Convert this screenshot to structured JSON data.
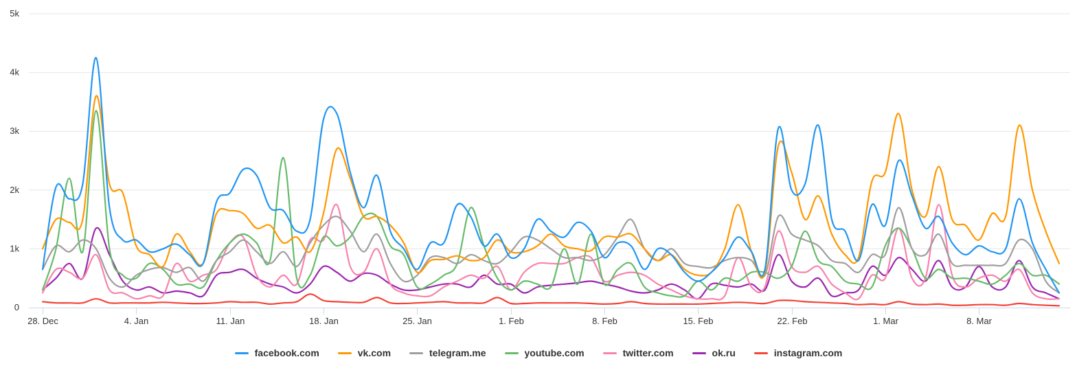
{
  "chart_data": {
    "type": "line",
    "title": "",
    "xlabel": "",
    "ylabel": "",
    "value_unit": "thousands",
    "ylim": [
      0,
      5
    ],
    "y_ticks": [
      {
        "value": 0,
        "label": "0"
      },
      {
        "value": 1,
        "label": "1k"
      },
      {
        "value": 2,
        "label": "2k"
      },
      {
        "value": 3,
        "label": "3k"
      },
      {
        "value": 4,
        "label": "4k"
      },
      {
        "value": 5,
        "label": "5k"
      }
    ],
    "x_days": 77,
    "x_ticks": [
      {
        "day": 0,
        "label": "28. Dec"
      },
      {
        "day": 7,
        "label": "4. Jan"
      },
      {
        "day": 14,
        "label": "11. Jan"
      },
      {
        "day": 21,
        "label": "18. Jan"
      },
      {
        "day": 28,
        "label": "25. Jan"
      },
      {
        "day": 35,
        "label": "1. Feb"
      },
      {
        "day": 42,
        "label": "8. Feb"
      },
      {
        "day": 49,
        "label": "15. Feb"
      },
      {
        "day": 56,
        "label": "22. Feb"
      },
      {
        "day": 63,
        "label": "1. Mar"
      },
      {
        "day": 70,
        "label": "8. Mar"
      }
    ],
    "grid": true,
    "legend_position": "bottom-center",
    "series": [
      {
        "name": "facebook.com",
        "color": "#2196f3",
        "values": [
          0.65,
          2.05,
          1.85,
          2.1,
          4.25,
          1.7,
          1.15,
          1.15,
          0.95,
          1.0,
          1.08,
          0.9,
          0.75,
          1.8,
          1.95,
          2.35,
          2.25,
          1.7,
          1.65,
          1.3,
          1.5,
          3.2,
          3.3,
          2.3,
          1.7,
          2.25,
          1.3,
          1.0,
          0.65,
          1.1,
          1.1,
          1.75,
          1.55,
          1.05,
          1.25,
          0.85,
          1.0,
          1.5,
          1.3,
          1.2,
          1.45,
          1.3,
          0.85,
          1.1,
          1.05,
          0.65,
          1.0,
          0.9,
          0.6,
          0.45,
          0.6,
          0.85,
          1.2,
          0.95,
          0.65,
          3.05,
          2.0,
          2.1,
          3.1,
          1.5,
          1.3,
          0.8,
          1.75,
          1.4,
          2.5,
          1.9,
          1.35,
          1.55,
          1.1,
          0.9,
          1.05,
          0.95,
          1.0,
          1.85,
          1.1,
          0.65,
          0.25
        ]
      },
      {
        "name": "vk.com",
        "color": "#ff9800",
        "values": [
          1.0,
          1.5,
          1.45,
          1.5,
          3.6,
          2.1,
          1.95,
          1.05,
          0.9,
          0.7,
          1.25,
          0.95,
          0.75,
          1.6,
          1.65,
          1.6,
          1.35,
          1.4,
          1.1,
          1.2,
          0.95,
          1.6,
          2.7,
          2.2,
          1.55,
          1.55,
          1.4,
          1.1,
          0.6,
          0.8,
          0.82,
          0.88,
          0.8,
          0.85,
          1.15,
          0.95,
          0.95,
          1.05,
          1.25,
          1.05,
          1.0,
          0.97,
          1.2,
          1.2,
          1.25,
          1.0,
          0.8,
          0.9,
          0.65,
          0.55,
          0.6,
          1.0,
          1.75,
          0.95,
          0.6,
          2.75,
          2.3,
          1.5,
          1.9,
          1.25,
          0.9,
          0.85,
          2.15,
          2.3,
          3.3,
          2.0,
          1.55,
          2.4,
          1.5,
          1.4,
          1.15,
          1.6,
          1.55,
          3.1,
          2.0,
          1.3,
          0.75
        ]
      },
      {
        "name": "telegram.me",
        "color": "#9e9e9e",
        "values": [
          0.65,
          1.05,
          0.95,
          1.15,
          1.0,
          0.5,
          0.35,
          0.55,
          0.65,
          0.68,
          0.6,
          0.68,
          0.45,
          0.8,
          0.95,
          1.15,
          0.95,
          0.75,
          0.95,
          0.7,
          1.1,
          1.4,
          1.55,
          1.3,
          0.95,
          1.25,
          0.75,
          0.45,
          0.55,
          0.85,
          0.85,
          0.75,
          0.9,
          0.8,
          0.75,
          0.95,
          1.2,
          1.15,
          1.0,
          0.85,
          0.85,
          0.8,
          0.9,
          1.2,
          1.5,
          1.0,
          0.8,
          1.0,
          0.75,
          0.7,
          0.68,
          0.8,
          0.85,
          0.8,
          0.55,
          1.55,
          1.25,
          1.15,
          1.05,
          0.8,
          0.75,
          0.6,
          0.9,
          0.9,
          1.7,
          1.0,
          0.9,
          1.25,
          0.75,
          0.72,
          0.72,
          0.72,
          0.75,
          1.15,
          1.0,
          0.45,
          0.25
        ]
      },
      {
        "name": "youtube.com",
        "color": "#66bb6a",
        "values": [
          0.3,
          1.0,
          2.2,
          0.95,
          3.35,
          1.0,
          0.55,
          0.5,
          0.75,
          0.65,
          0.4,
          0.4,
          0.35,
          0.8,
          1.1,
          1.25,
          1.1,
          0.8,
          2.55,
          0.5,
          0.55,
          1.2,
          1.05,
          1.2,
          1.55,
          1.55,
          1.05,
          0.9,
          0.35,
          0.4,
          0.55,
          0.75,
          1.7,
          1.05,
          0.5,
          0.3,
          0.45,
          0.4,
          0.35,
          1.0,
          0.4,
          1.25,
          0.4,
          0.65,
          0.75,
          0.35,
          0.25,
          0.2,
          0.2,
          0.45,
          0.3,
          0.5,
          0.45,
          0.6,
          0.6,
          0.5,
          0.7,
          1.3,
          0.8,
          0.7,
          0.45,
          0.4,
          0.35,
          1.05,
          1.35,
          1.0,
          0.5,
          0.65,
          0.5,
          0.5,
          0.45,
          0.4,
          0.55,
          0.75,
          0.55,
          0.55,
          0.4
        ]
      },
      {
        "name": "twitter.com",
        "color": "#f783ac",
        "values": [
          0.25,
          0.65,
          0.6,
          0.5,
          0.9,
          0.3,
          0.25,
          0.15,
          0.2,
          0.2,
          0.75,
          0.45,
          0.55,
          0.65,
          1.1,
          1.2,
          0.55,
          0.35,
          0.55,
          0.4,
          1.15,
          1.15,
          1.75,
          0.7,
          0.6,
          1.0,
          0.4,
          0.25,
          0.2,
          0.2,
          0.35,
          0.45,
          0.55,
          0.5,
          0.7,
          0.3,
          0.6,
          0.75,
          0.75,
          0.75,
          0.85,
          0.85,
          0.45,
          0.55,
          0.6,
          0.55,
          0.4,
          0.3,
          0.2,
          0.15,
          0.15,
          0.2,
          0.85,
          0.35,
          0.35,
          1.3,
          0.7,
          0.6,
          0.7,
          0.4,
          0.25,
          0.15,
          0.55,
          0.5,
          1.35,
          0.5,
          0.5,
          1.75,
          0.55,
          0.35,
          0.5,
          0.55,
          0.45,
          0.65,
          0.25,
          0.15,
          0.15
        ]
      },
      {
        "name": "ok.ru",
        "color": "#9c27b0",
        "values": [
          0.3,
          0.5,
          0.75,
          0.5,
          1.35,
          0.9,
          0.45,
          0.3,
          0.35,
          0.25,
          0.28,
          0.25,
          0.2,
          0.55,
          0.6,
          0.65,
          0.5,
          0.4,
          0.35,
          0.25,
          0.4,
          0.7,
          0.6,
          0.45,
          0.58,
          0.55,
          0.4,
          0.3,
          0.3,
          0.35,
          0.4,
          0.4,
          0.35,
          0.55,
          0.4,
          0.4,
          0.25,
          0.35,
          0.38,
          0.4,
          0.42,
          0.45,
          0.4,
          0.35,
          0.28,
          0.25,
          0.3,
          0.4,
          0.3,
          0.15,
          0.4,
          0.38,
          0.35,
          0.4,
          0.3,
          0.9,
          0.45,
          0.35,
          0.5,
          0.2,
          0.25,
          0.3,
          0.7,
          0.55,
          0.85,
          0.65,
          0.45,
          0.8,
          0.35,
          0.35,
          0.7,
          0.35,
          0.35,
          0.8,
          0.35,
          0.25,
          0.15
        ]
      },
      {
        "name": "instagram.com",
        "color": "#f44336",
        "values": [
          0.1,
          0.08,
          0.08,
          0.08,
          0.15,
          0.08,
          0.08,
          0.08,
          0.08,
          0.09,
          0.08,
          0.07,
          0.07,
          0.08,
          0.1,
          0.09,
          0.09,
          0.06,
          0.08,
          0.1,
          0.23,
          0.12,
          0.1,
          0.09,
          0.09,
          0.17,
          0.08,
          0.07,
          0.08,
          0.09,
          0.1,
          0.08,
          0.08,
          0.08,
          0.17,
          0.07,
          0.07,
          0.08,
          0.08,
          0.08,
          0.08,
          0.07,
          0.06,
          0.07,
          0.1,
          0.07,
          0.06,
          0.06,
          0.06,
          0.06,
          0.07,
          0.08,
          0.09,
          0.08,
          0.07,
          0.12,
          0.12,
          0.1,
          0.09,
          0.08,
          0.07,
          0.05,
          0.06,
          0.05,
          0.1,
          0.06,
          0.05,
          0.06,
          0.04,
          0.04,
          0.05,
          0.05,
          0.04,
          0.07,
          0.05,
          0.04,
          0.03
        ]
      }
    ]
  }
}
